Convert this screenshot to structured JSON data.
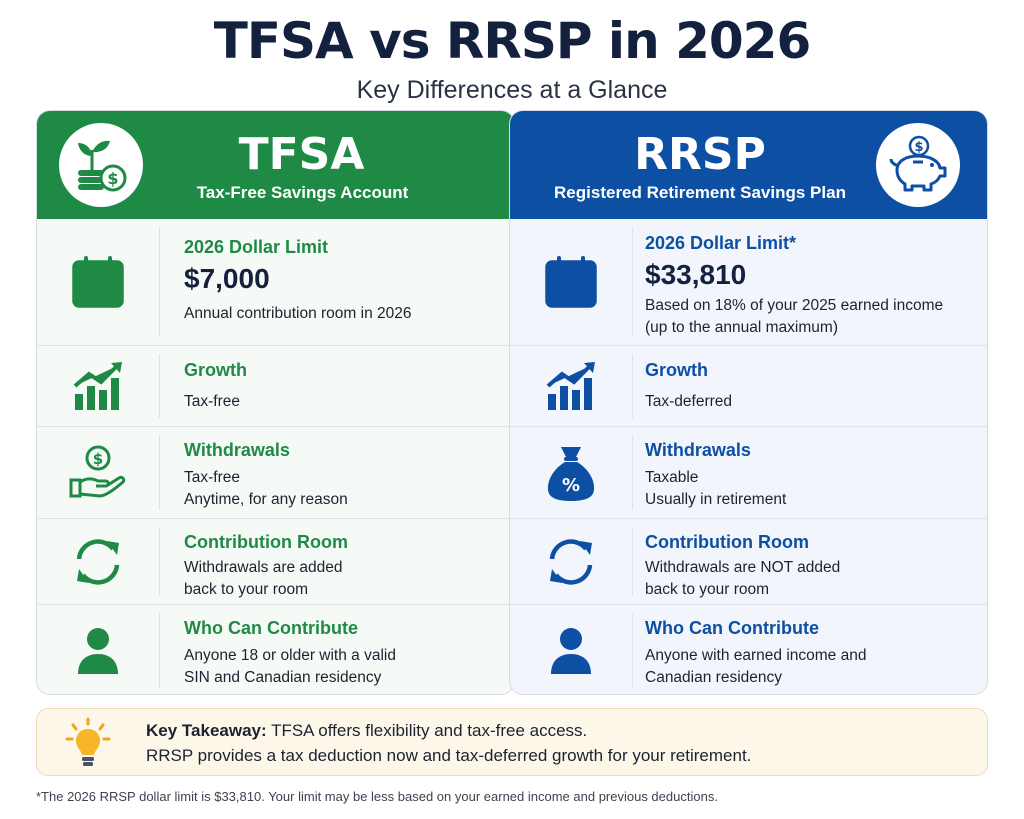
{
  "header": {
    "title": "TFSA vs RRSP in 2026",
    "subtitle": "Key Differences at a Glance"
  },
  "tfsa": {
    "name": "TFSA",
    "full_name": "Tax-Free Savings Account",
    "color": "#1f8a45",
    "badge_icon": "plant-coins-icon",
    "limit": {
      "heading": "2026 Dollar Limit",
      "amount": "$7,000",
      "desc_lines": [
        "Annual contribution room in 2026"
      ],
      "icon": "calendar-icon"
    },
    "growth": {
      "heading": "Growth",
      "desc_lines": [
        "Tax-free"
      ],
      "icon": "growth-chart-icon"
    },
    "withdrawals": {
      "heading": "Withdrawals",
      "desc_lines": [
        "Tax-free",
        "Anytime, for any reason"
      ],
      "icon": "hand-coin-icon"
    },
    "contribution_room": {
      "heading": "Contribution Room",
      "desc_lines": [
        "Withdrawals are added",
        "back to your room"
      ],
      "icon": "refresh-icon"
    },
    "who": {
      "heading": "Who Can Contribute",
      "desc_lines": [
        "Anyone 18 or older with a valid",
        "SIN and Canadian residency"
      ],
      "icon": "person-icon"
    }
  },
  "rrsp": {
    "name": "RRSP",
    "full_name": "Registered Retirement Savings Plan",
    "color": "#0d4fa3",
    "badge_icon": "piggy-bank-icon",
    "limit": {
      "heading": "2026 Dollar Limit*",
      "amount": "$33,810",
      "desc_lines": [
        "Based on 18% of your 2025 earned income",
        "(up to the annual maximum)"
      ],
      "icon": "calendar-icon"
    },
    "growth": {
      "heading": "Growth",
      "desc_lines": [
        "Tax-deferred"
      ],
      "icon": "growth-chart-icon"
    },
    "withdrawals": {
      "heading": "Withdrawals",
      "desc_lines": [
        "Taxable",
        "Usually in retirement"
      ],
      "icon": "percent-bag-icon",
      "bag_symbol": "%"
    },
    "contribution_room": {
      "heading": "Contribution Room",
      "desc_lines": [
        "Withdrawals are NOT added",
        "back to your room"
      ],
      "icon": "refresh-icon"
    },
    "who": {
      "heading": "Who Can Contribute",
      "desc_lines": [
        "Anyone with earned income and",
        "Canadian residency"
      ],
      "icon": "person-icon"
    }
  },
  "takeaway": {
    "label": "Key Takeaway:",
    "line1": " TFSA offers flexibility and tax-free access.",
    "line2": "RRSP provides a tax deduction now and tax-deferred growth for your retirement.",
    "icon": "lightbulb-icon"
  },
  "footnote": "*The 2026 RRSP dollar limit is $33,810. Your limit may be less based on your earned income and previous deductions.",
  "icon_symbols": {
    "dollar": "$"
  }
}
